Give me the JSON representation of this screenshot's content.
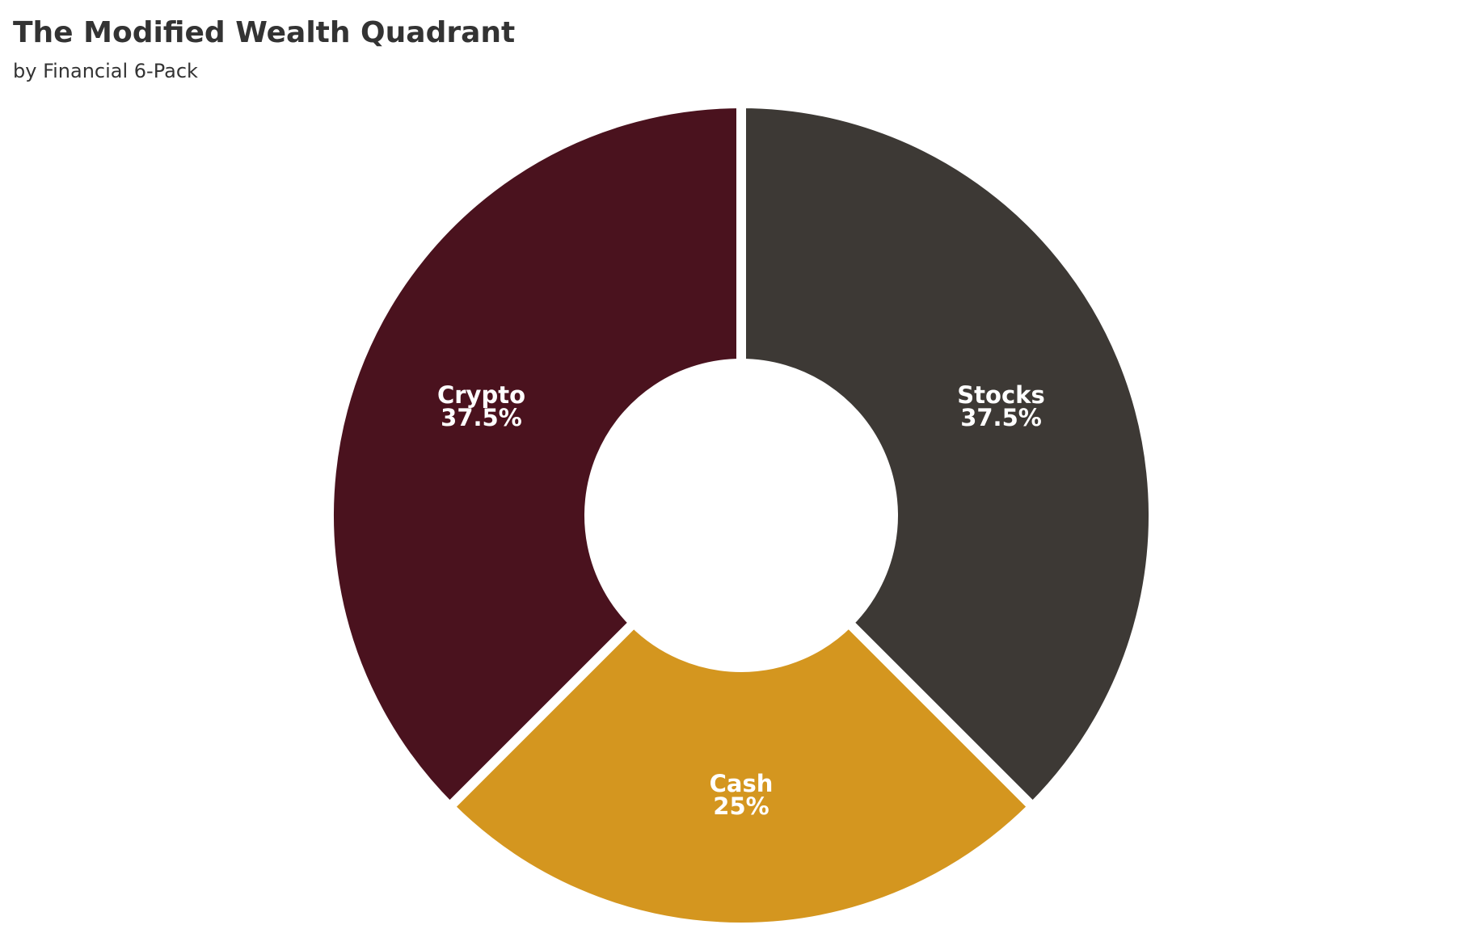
{
  "chart_data": {
    "type": "pie",
    "title": "The Modified Wealth Quadrant",
    "subtitle": "by Financial 6-Pack",
    "categories": [
      "Stocks",
      "Cash",
      "Crypto"
    ],
    "values": [
      37.5,
      25,
      37.5
    ],
    "value_labels": [
      "37.5%",
      "25%",
      "37.5%"
    ],
    "colors": [
      "#3d3935",
      "#d4961f",
      "#4a121e"
    ],
    "donut": true
  }
}
